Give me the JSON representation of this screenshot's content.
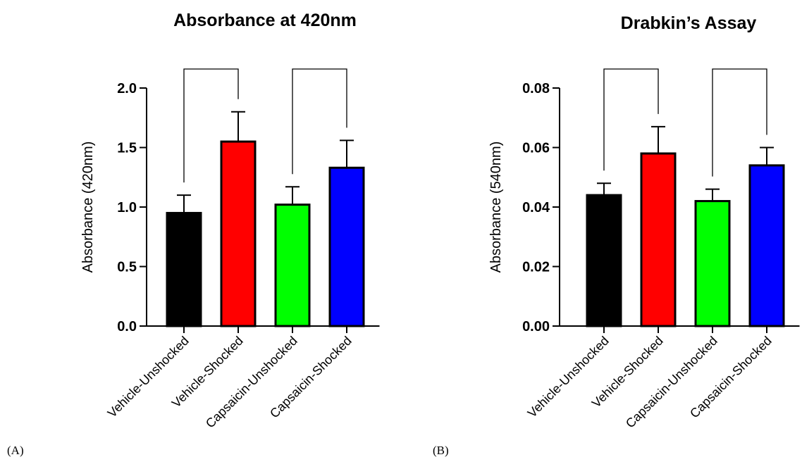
{
  "chart_data": [
    {
      "type": "bar",
      "panel": "(A)",
      "title": "Absorbance at 420nm",
      "ylabel": "Absorbance (420nm)",
      "xlabel": "",
      "categories": [
        "Vehicle-Unshocked",
        "Vehicle-Shocked",
        "Capsaicin-Unshocked",
        "Capsaicin-Shocked"
      ],
      "values": [
        0.95,
        1.55,
        1.02,
        1.33
      ],
      "errors": [
        0.15,
        0.25,
        0.15,
        0.23
      ],
      "colors": [
        "#000000",
        "#ff0000",
        "#00ff00",
        "#0000ff"
      ],
      "ylim": [
        0,
        2.0
      ],
      "yticks": [
        "0.0",
        "0.5",
        "1.0",
        "1.5",
        "2.0"
      ],
      "comparisons": [
        [
          0,
          1
        ],
        [
          2,
          3
        ]
      ],
      "grid": false,
      "legend": "none"
    },
    {
      "type": "bar",
      "panel": "(B)",
      "title": "Drabkin’s Assay",
      "ylabel": "Absorbance (540nm)",
      "xlabel": "",
      "categories": [
        "Vehicle-Unshocked",
        "Vehicle-Shocked",
        "Capsaicin-Unshocked",
        "Capsaicin-Shocked"
      ],
      "values": [
        0.044,
        0.058,
        0.042,
        0.054
      ],
      "errors": [
        0.004,
        0.009,
        0.004,
        0.006
      ],
      "colors": [
        "#000000",
        "#ff0000",
        "#00ff00",
        "#0000ff"
      ],
      "ylim": [
        0,
        0.08
      ],
      "yticks": [
        "0.00",
        "0.02",
        "0.04",
        "0.06",
        "0.08"
      ],
      "comparisons": [
        [
          0,
          1
        ],
        [
          2,
          3
        ]
      ],
      "grid": false,
      "legend": "none"
    }
  ]
}
